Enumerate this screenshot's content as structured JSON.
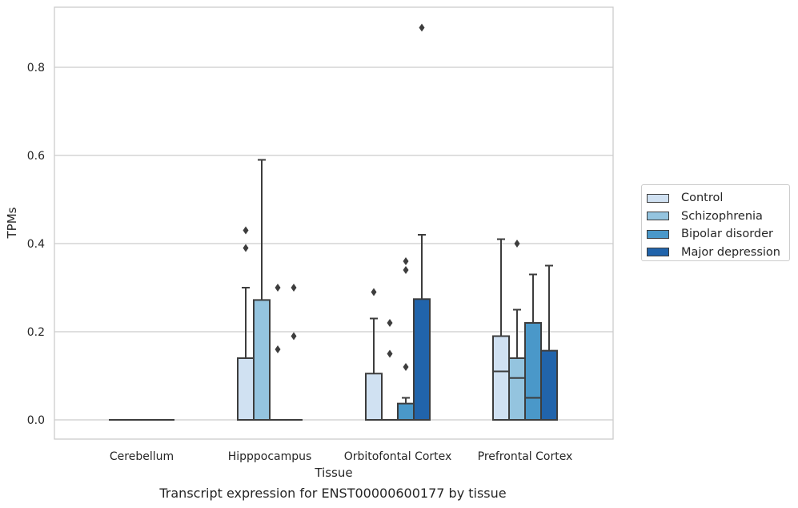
{
  "chart_data": {
    "type": "box",
    "caption": "Transcript expression for ENST00000600177 by tissue",
    "xlabel": "Tissue",
    "ylabel": "TPMs",
    "ylim": [
      -0.045,
      0.94
    ],
    "yticks": [
      "0.0",
      "0.2",
      "0.4",
      "0.6",
      "0.8"
    ],
    "ytick_values": [
      0.0,
      0.2,
      0.4,
      0.6,
      0.8
    ],
    "grid": "horizontal",
    "legend_position": "right",
    "categories": [
      "Cerebellum",
      "Hipppocampus",
      "Orbitofontal Cortex",
      "Prefrontal Cortex"
    ],
    "series": [
      {
        "name": "Control",
        "color": "#d0e1f2",
        "boxes": [
          {
            "q1": 0.0,
            "median": 0.0,
            "q3": 0.0,
            "whisker_low": 0.0,
            "whisker_high": 0.0,
            "outliers": []
          },
          {
            "q1": 0.0,
            "median": 0.0,
            "q3": 0.14,
            "whisker_low": 0.0,
            "whisker_high": 0.3,
            "outliers": [
              0.39,
              0.43
            ]
          },
          {
            "q1": 0.0,
            "median": 0.0,
            "q3": 0.105,
            "whisker_low": 0.0,
            "whisker_high": 0.23,
            "outliers": [
              0.29
            ]
          },
          {
            "q1": 0.0,
            "median": 0.11,
            "q3": 0.19,
            "whisker_low": 0.0,
            "whisker_high": 0.41,
            "outliers": []
          }
        ]
      },
      {
        "name": "Schizophrenia",
        "color": "#94c4df",
        "boxes": [
          {
            "q1": 0.0,
            "median": 0.0,
            "q3": 0.0,
            "whisker_low": 0.0,
            "whisker_high": 0.0,
            "outliers": []
          },
          {
            "q1": 0.0,
            "median": 0.0,
            "q3": 0.272,
            "whisker_low": 0.0,
            "whisker_high": 0.59,
            "outliers": []
          },
          {
            "q1": 0.0,
            "median": 0.0,
            "q3": 0.0,
            "whisker_low": 0.0,
            "whisker_high": 0.0,
            "outliers": [
              0.15,
              0.22
            ]
          },
          {
            "q1": 0.0,
            "median": 0.095,
            "q3": 0.14,
            "whisker_low": 0.0,
            "whisker_high": 0.25,
            "outliers": [
              0.4
            ]
          }
        ]
      },
      {
        "name": "Bipolar disorder",
        "color": "#4a98c9",
        "boxes": [
          {
            "q1": 0.0,
            "median": 0.0,
            "q3": 0.0,
            "whisker_low": 0.0,
            "whisker_high": 0.0,
            "outliers": []
          },
          {
            "q1": 0.0,
            "median": 0.0,
            "q3": 0.0,
            "whisker_low": 0.0,
            "whisker_high": 0.0,
            "outliers": [
              0.16,
              0.3
            ]
          },
          {
            "q1": 0.0,
            "median": 0.0,
            "q3": 0.037,
            "whisker_low": 0.0,
            "whisker_high": 0.05,
            "outliers": [
              0.12,
              0.34,
              0.36
            ]
          },
          {
            "q1": 0.0,
            "median": 0.05,
            "q3": 0.22,
            "whisker_low": 0.0,
            "whisker_high": 0.33,
            "outliers": []
          }
        ]
      },
      {
        "name": "Major depression",
        "color": "#2164ab",
        "boxes": [
          {
            "q1": 0.0,
            "median": 0.0,
            "q3": 0.0,
            "whisker_low": 0.0,
            "whisker_high": 0.0,
            "outliers": []
          },
          {
            "q1": 0.0,
            "median": 0.0,
            "q3": 0.0,
            "whisker_low": 0.0,
            "whisker_high": 0.0,
            "outliers": [
              0.19,
              0.3
            ]
          },
          {
            "q1": 0.0,
            "median": 0.0,
            "q3": 0.274,
            "whisker_low": 0.0,
            "whisker_high": 0.42,
            "outliers": [
              0.89
            ]
          },
          {
            "q1": 0.0,
            "median": 0.0,
            "q3": 0.157,
            "whisker_low": 0.0,
            "whisker_high": 0.35,
            "outliers": []
          }
        ]
      }
    ]
  }
}
